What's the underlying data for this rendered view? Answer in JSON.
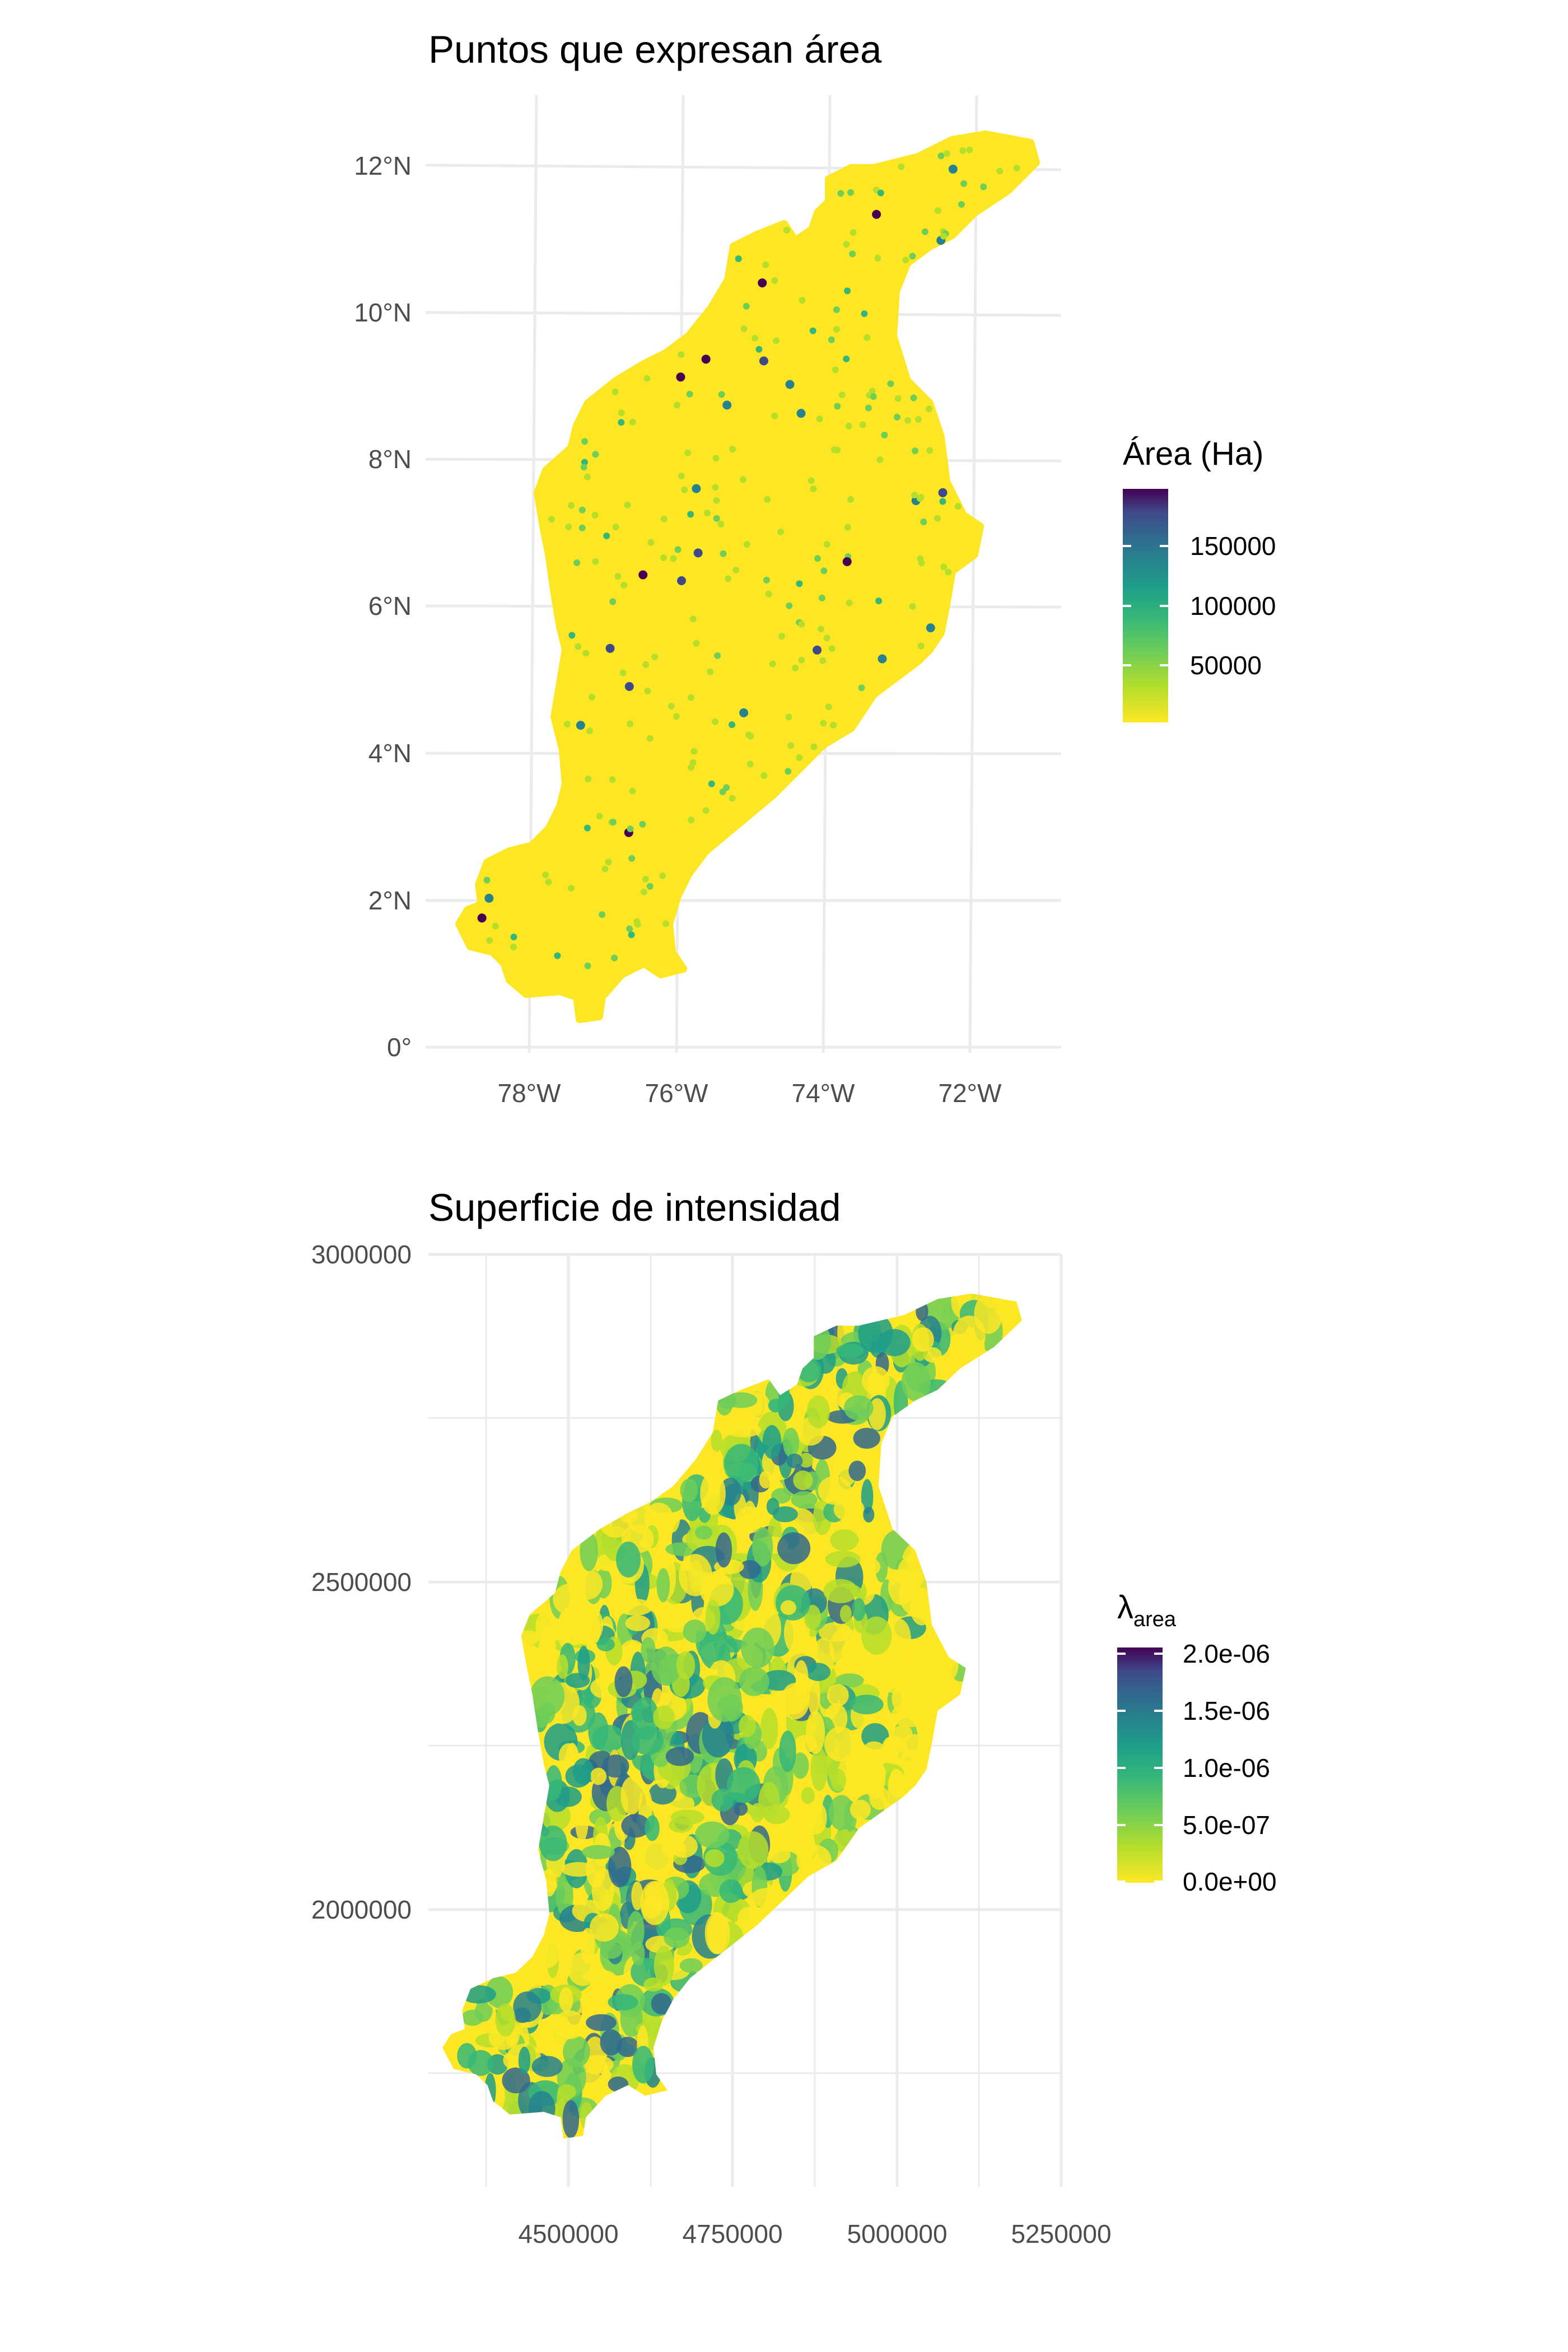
{
  "panels": [
    {
      "title": "Puntos que expresan área",
      "x_ticks": [
        "78°W",
        "76°W",
        "74°W",
        "72°W"
      ],
      "y_ticks": [
        "12°N",
        "10°N",
        "8°N",
        "6°N",
        "4°N",
        "2°N",
        "0°"
      ],
      "legend": {
        "title": "Área (Ha)",
        "labels": [
          "150000",
          "100000",
          "50000"
        ]
      }
    },
    {
      "title": "Superficie de intensidad",
      "x_ticks": [
        "4500000",
        "4750000",
        "5000000",
        "5250000"
      ],
      "y_ticks": [
        "3000000",
        "2500000",
        "2000000"
      ],
      "legend": {
        "title_main": "λ",
        "title_sub": "area",
        "labels": [
          "2.0e-06",
          "1.5e-06",
          "1.0e-06",
          "5.0e-07",
          "0.0e+00"
        ]
      }
    }
  ],
  "colors": {
    "viridis": [
      "#fde725",
      "#b5de2b",
      "#6ece58",
      "#35b779",
      "#1f9e89",
      "#26828e",
      "#31688e",
      "#3e4989",
      "#482878",
      "#440154"
    ]
  }
}
